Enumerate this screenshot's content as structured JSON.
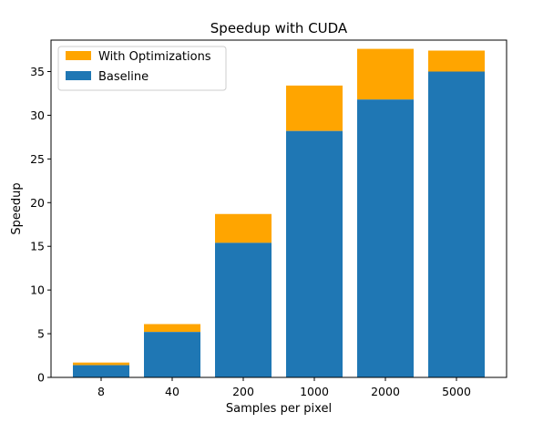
{
  "chart_data": {
    "type": "bar",
    "stacked": true,
    "title": "Speedup with CUDA",
    "xlabel": "Samples per pixel",
    "ylabel": "Speedup",
    "categories": [
      "8",
      "40",
      "200",
      "1000",
      "2000",
      "5000"
    ],
    "ylim": [
      0,
      38.6
    ],
    "yticks": [
      0,
      5,
      10,
      15,
      20,
      25,
      30,
      35
    ],
    "ytick_labels": [
      "0",
      "5",
      "10",
      "15",
      "20",
      "25",
      "30",
      "35"
    ],
    "grid": false,
    "legend_position": "top-left",
    "series": [
      {
        "name": "Baseline",
        "color": "#1f77b4",
        "values": [
          1.4,
          5.2,
          15.4,
          28.2,
          31.8,
          35.0
        ]
      },
      {
        "name": "With Optimizations",
        "color": "#ffa500",
        "totals": [
          1.7,
          6.1,
          18.7,
          33.4,
          37.6,
          37.4
        ]
      }
    ],
    "legend": [
      {
        "name": "With Optimizations",
        "color": "#ffa500"
      },
      {
        "name": "Baseline",
        "color": "#1f77b4"
      }
    ]
  }
}
